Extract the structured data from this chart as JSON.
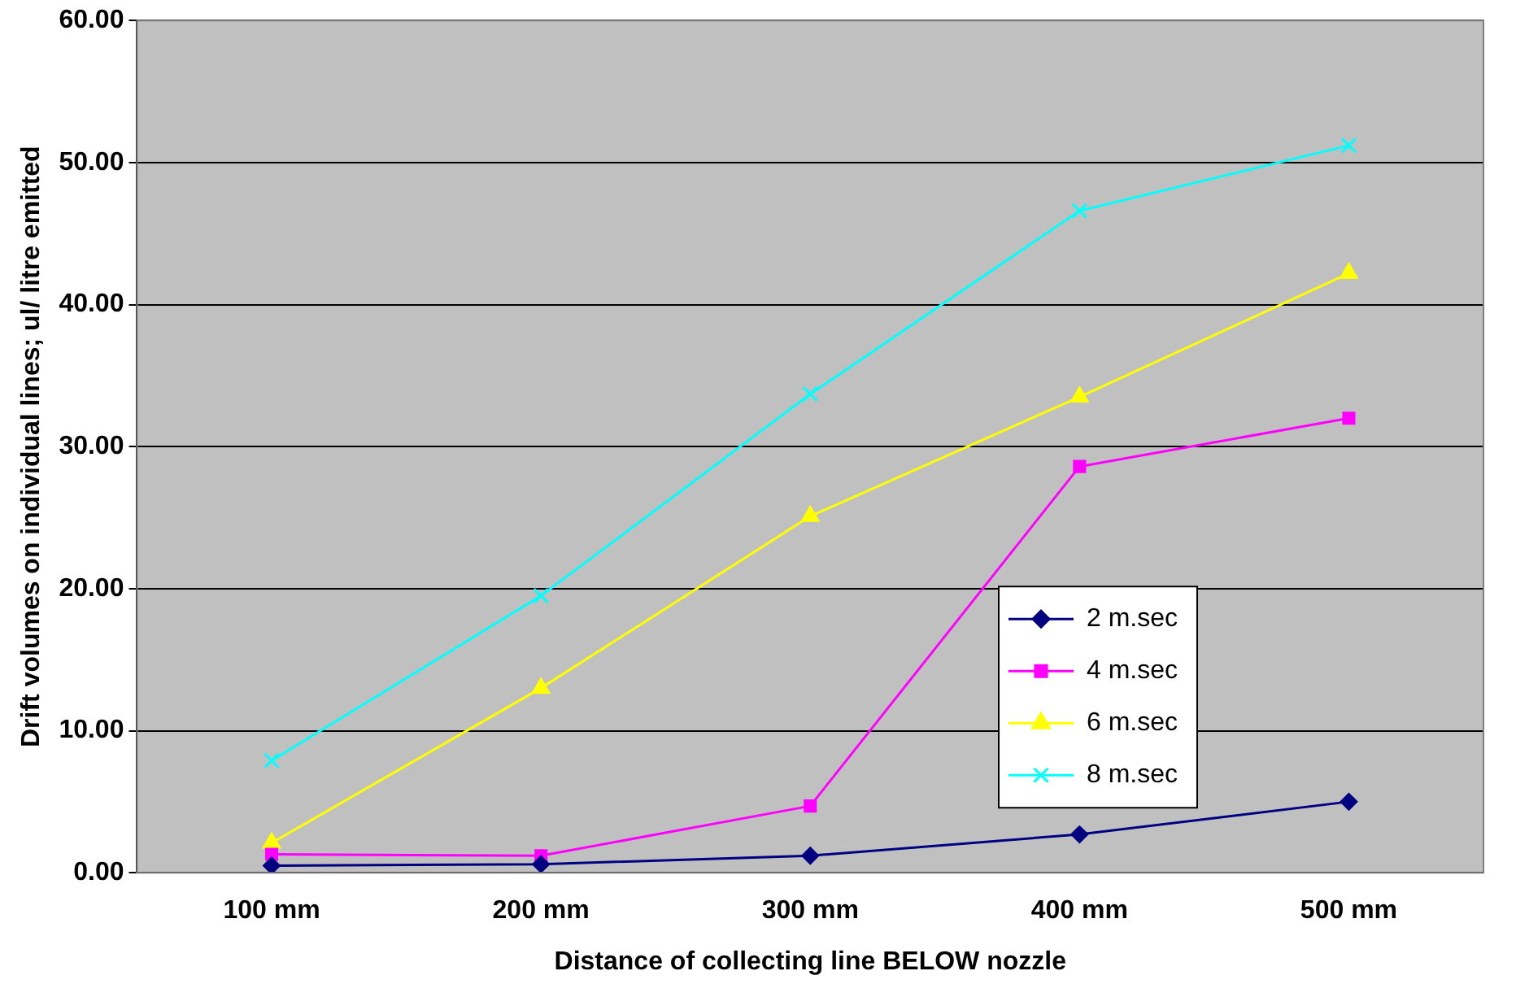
{
  "chart_data": {
    "type": "line",
    "xlabel": "Distance of collecting line BELOW nozzle",
    "ylabel": "Drift volumes on individual lines; ul/ litre emitted",
    "categories": [
      "100 mm",
      "200 mm",
      "300 mm",
      "400 mm",
      "500 mm"
    ],
    "series": [
      {
        "name": "2 m.sec",
        "color": "#000080",
        "marker": "diamond",
        "values": [
          0.5,
          0.6,
          1.2,
          2.7,
          5.0
        ]
      },
      {
        "name": "4 m.sec",
        "color": "#ff00ff",
        "marker": "square",
        "values": [
          1.3,
          1.2,
          4.7,
          28.6,
          32.0
        ]
      },
      {
        "name": "6 m.sec",
        "color": "#ffff00",
        "marker": "triangle",
        "values": [
          2.1,
          13.0,
          25.1,
          33.5,
          42.2
        ]
      },
      {
        "name": "8 m.sec",
        "color": "#00ffff",
        "marker": "cross",
        "values": [
          7.9,
          19.5,
          33.7,
          46.6,
          51.2
        ]
      }
    ],
    "ylim": [
      0,
      60
    ],
    "yticks": [
      {
        "value": 0,
        "label": "0.00"
      },
      {
        "value": 10,
        "label": "10.00"
      },
      {
        "value": 20,
        "label": "20.00"
      },
      {
        "value": 30,
        "label": "30.00"
      },
      {
        "value": 40,
        "label": "40.00"
      },
      {
        "value": 50,
        "label": "50.00"
      },
      {
        "value": 60,
        "label": "60.00"
      }
    ],
    "grid": "y",
    "legend": "bottom right"
  }
}
